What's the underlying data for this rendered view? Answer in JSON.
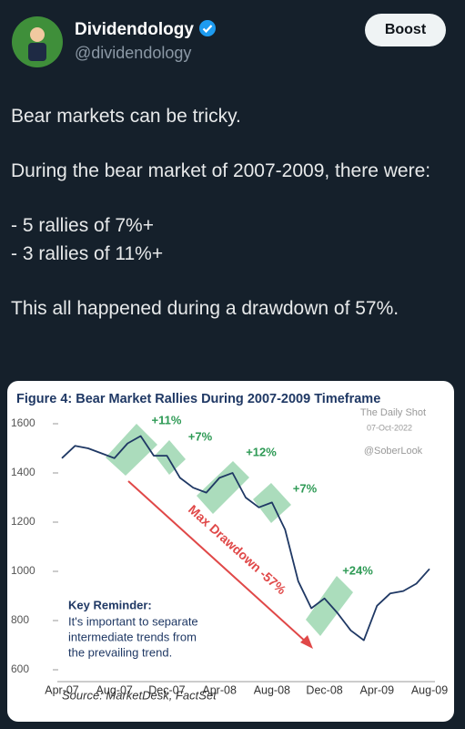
{
  "header": {
    "name": "Dividendology",
    "handle": "@dividendology",
    "button": "Boost"
  },
  "tweet": {
    "paragraphs": [
      "Bear markets can be tricky.",
      "During the bear market of 2007-2009, there were:",
      "- 5 rallies of 7%+\n- 3 rallies of 11%+",
      "This all happened during a drawdown of 57%."
    ]
  },
  "chart_data": {
    "type": "line",
    "title": "Figure 4: Bear Market Rallies During 2007-2009 Timeframe",
    "categories": [
      "Apr-07",
      null,
      null,
      null,
      "Aug-07",
      null,
      null,
      null,
      "Dec-07",
      null,
      null,
      null,
      "Apr-08",
      null,
      null,
      null,
      "Aug-08",
      null,
      null,
      null,
      "Dec-08",
      null,
      null,
      null,
      "Apr-09",
      null,
      null,
      null,
      "Aug-09"
    ],
    "values": [
      1460,
      1510,
      1500,
      1480,
      1460,
      1520,
      1550,
      1470,
      1470,
      1380,
      1340,
      1320,
      1380,
      1400,
      1300,
      1260,
      1280,
      1170,
      960,
      850,
      890,
      830,
      760,
      720,
      860,
      910,
      920,
      950,
      1010
    ],
    "color": "#1f3864",
    "ylim": [
      600,
      1600
    ],
    "yticks": [
      600,
      800,
      1000,
      1200,
      1400,
      1600
    ],
    "annotations": [
      "+11%",
      "+7%",
      "+12%",
      "+7%",
      "+24%",
      "Max Drawdown -57%",
      "The Daily Shot",
      "07-Oct-2022",
      "@SoberLook"
    ],
    "key_reminder": {
      "title": "Key Reminder:",
      "lines": [
        "It's important to separate",
        "intermediate trends from",
        "the prevailing trend."
      ]
    },
    "source": "Source: MarketDesk, FactSet"
  }
}
